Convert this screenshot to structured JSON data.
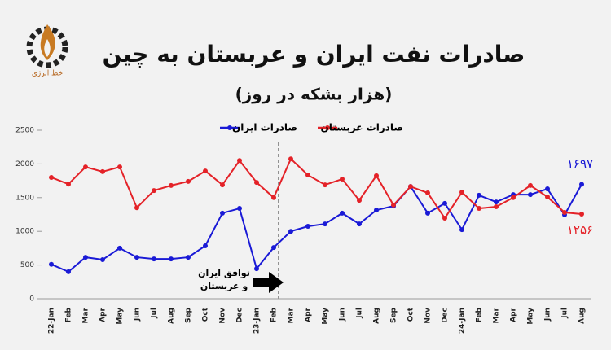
{
  "brand": "خط انرژی",
  "chart_data": {
    "type": "line",
    "title": "صادرات نفت ایران و عربستان به چین",
    "subtitle": "(هزار بشکه در روز)",
    "annotation": [
      "توافق ایران",
      "و عربستان"
    ],
    "categories": [
      "22-Jan",
      "Feb",
      "Mar",
      "Apr",
      "May",
      "Jun",
      "Jul",
      "Aug",
      "Sep",
      "Oct",
      "Nov",
      "Dec",
      "23-Jan",
      "Feb",
      "Mar",
      "Apr",
      "May",
      "Jun",
      "Jul",
      "Aug",
      "Sep",
      "Oct",
      "Nov",
      "Dec",
      "24-Jan",
      "Feb",
      "Mar",
      "Apr",
      "May",
      "Jun",
      "Jul",
      "Aug"
    ],
    "series": [
      {
        "name": "صادرات ایران",
        "color": "#1a1ad6",
        "values": [
          510,
          400,
          615,
          580,
          750,
          615,
          590,
          590,
          615,
          785,
          1270,
          1340,
          445,
          760,
          1000,
          1075,
          1110,
          1270,
          1110,
          1315,
          1375,
          1665,
          1270,
          1415,
          1025,
          1535,
          1435,
          1545,
          1545,
          1630,
          1245,
          1697
        ],
        "value_labels": [
          null,
          null,
          null,
          null,
          null,
          null,
          null,
          null,
          null,
          null,
          null,
          null,
          null,
          null,
          null,
          null,
          null,
          null,
          null,
          null,
          null,
          null,
          null,
          null,
          null,
          null,
          null,
          null,
          null,
          null,
          null,
          "۱۶۹۷"
        ]
      },
      {
        "name": "صادرات عربستان",
        "color": "#e42228",
        "values": [
          1800,
          1700,
          1955,
          1885,
          1955,
          1350,
          1605,
          1680,
          1740,
          1895,
          1690,
          2050,
          1725,
          1500,
          2075,
          1835,
          1690,
          1775,
          1460,
          1825,
          1390,
          1665,
          1570,
          1195,
          1580,
          1340,
          1365,
          1500,
          1680,
          1510,
          1280,
          1256
        ],
        "value_labels": [
          null,
          null,
          null,
          null,
          null,
          null,
          null,
          null,
          null,
          null,
          null,
          null,
          null,
          null,
          null,
          null,
          null,
          null,
          null,
          null,
          null,
          null,
          null,
          null,
          null,
          null,
          null,
          null,
          null,
          null,
          null,
          "۱۲۵۶"
        ]
      }
    ],
    "ylim": [
      0,
      2500
    ],
    "yticks": [
      0,
      500,
      1000,
      1500,
      2000,
      2500
    ],
    "grid": false
  }
}
